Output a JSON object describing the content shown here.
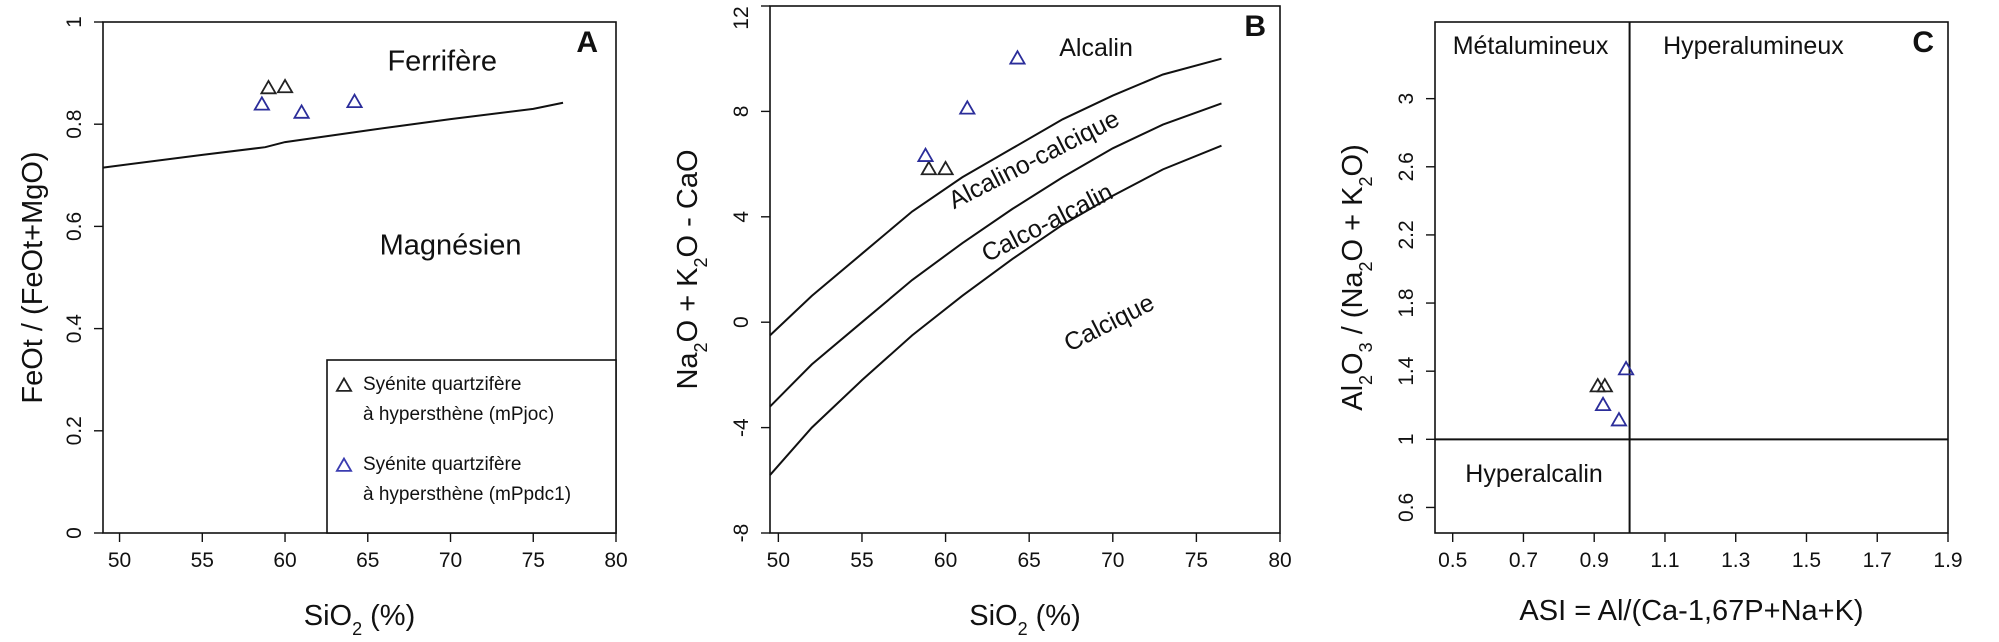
{
  "chart_data": [
    {
      "panel": "A",
      "type": "scatter",
      "xlabel": "SiO",
      "xlabel_sub": "2",
      "xlabel_tail": " (%)",
      "ylabel": "FeOt / (FeOt+MgO)",
      "xlim": [
        49,
        80
      ],
      "ylim": [
        0,
        1
      ],
      "xticks": [
        "50",
        "55",
        "60",
        "65",
        "70",
        "75",
        "80"
      ],
      "yticks": [
        "0",
        "0.2",
        "0.4",
        "0.6",
        "0.8",
        "1"
      ],
      "regions": [
        "Ferrifère",
        "Magnésien"
      ],
      "boundary": {
        "x": [
          49,
          55,
          58.8,
          60,
          65,
          70,
          75,
          76.8
        ],
        "y": [
          0.715,
          0.74,
          0.755,
          0.765,
          0.788,
          0.81,
          0.83,
          0.842
        ]
      },
      "series": [
        {
          "name": "Syénite quartzifère à hypersthène (mPjoc)",
          "color": "#222222",
          "x": [
            59.0,
            60.0
          ],
          "y": [
            0.87,
            0.872
          ]
        },
        {
          "name": "Syénite quartzifère à hypersthène (mPpdc1)",
          "color": "#2b2d9a",
          "x": [
            58.6,
            61.0,
            64.2
          ],
          "y": [
            0.838,
            0.822,
            0.843
          ]
        }
      ],
      "legend": {
        "placement": "bottom-right",
        "entries": [
          {
            "line1": "Syénite quartzifère",
            "line2": "à hypersthène (mPjoc)",
            "color": "#222222"
          },
          {
            "line1": "Syénite quartzifère",
            "line2": "à hypersthène (mPpdc1)",
            "color": "#3a3cb0"
          }
        ]
      }
    },
    {
      "panel": "B",
      "type": "scatter",
      "xlabel": "SiO",
      "xlabel_sub": "2",
      "xlabel_tail": " (%)",
      "ylabel_parts": [
        "Na",
        "2",
        "O + K",
        "2",
        "O - CaO"
      ],
      "xlim": [
        49.5,
        80
      ],
      "ylim": [
        -8,
        12
      ],
      "xticks": [
        "50",
        "55",
        "60",
        "65",
        "70",
        "75",
        "80"
      ],
      "yticks": [
        "-8",
        "-4",
        "0",
        "4",
        "8",
        "12"
      ],
      "regions": [
        "Alcalin",
        "Alcalino-calcique",
        "Calco-alcalin",
        "Calcique"
      ],
      "boundaries": [
        {
          "x": [
            49.5,
            52,
            55,
            58,
            61,
            64,
            67,
            70,
            73,
            76.5
          ],
          "y": [
            -0.5,
            1.0,
            2.6,
            4.2,
            5.5,
            6.6,
            7.7,
            8.6,
            9.4,
            10.0
          ]
        },
        {
          "x": [
            49.5,
            52,
            55,
            58,
            61,
            64,
            67,
            70,
            73,
            76.5
          ],
          "y": [
            -3.2,
            -1.6,
            0.0,
            1.6,
            3.0,
            4.3,
            5.5,
            6.6,
            7.5,
            8.3
          ]
        },
        {
          "x": [
            49.5,
            52,
            55,
            58,
            61,
            64,
            67,
            70,
            73,
            76.5
          ],
          "y": [
            -5.8,
            -4.0,
            -2.2,
            -0.5,
            1.0,
            2.4,
            3.7,
            4.8,
            5.8,
            6.7
          ]
        }
      ],
      "series": [
        {
          "name": "Syénite quartzifère à hypersthène (mPjoc)",
          "color": "#222222",
          "x": [
            59.0,
            60.0
          ],
          "y": [
            5.8,
            5.8
          ]
        },
        {
          "name": "Syénite quartzifère à hypersthène (mPpdc1)",
          "color": "#2b2d9a",
          "x": [
            58.8,
            61.3,
            64.3
          ],
          "y": [
            6.3,
            8.1,
            10.0
          ]
        }
      ]
    },
    {
      "panel": "C",
      "type": "scatter",
      "xlabel": "ASI = Al/(Ca-1,67P+Na+K)",
      "ylabel_parts": [
        "Al",
        "2",
        "O",
        "3",
        " / (Na",
        "2",
        "O + K",
        "2",
        "O)"
      ],
      "xlim": [
        0.45,
        1.9
      ],
      "ylim": [
        0.45,
        3.45
      ],
      "xticks": [
        "0.5",
        "0.7",
        "0.9",
        "1.1",
        "1.3",
        "1.5",
        "1.7",
        "1.9"
      ],
      "yticks": [
        "0.6",
        "1",
        "1.4",
        "1.8",
        "2.2",
        "2.6",
        "3"
      ],
      "regions": [
        "Métalumineux",
        "Hyperalumineux",
        "Hyperalcalin"
      ],
      "divider_x": 1.0,
      "divider_y": 1.0,
      "series": [
        {
          "name": "Syénite quartzifère à hypersthène (mPjoc)",
          "color": "#222222",
          "x": [
            0.91,
            0.93
          ],
          "y": [
            1.31,
            1.31
          ]
        },
        {
          "name": "Syénite quartzifère à hypersthène (mPpdc1)",
          "color": "#2b2d9a",
          "x": [
            0.925,
            0.97,
            0.99
          ],
          "y": [
            1.2,
            1.11,
            1.41
          ]
        }
      ]
    }
  ]
}
